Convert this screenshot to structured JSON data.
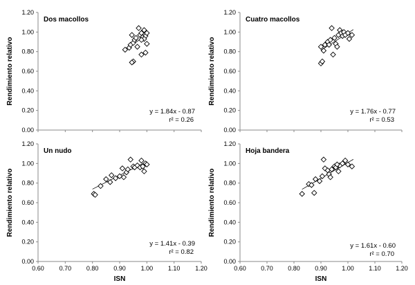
{
  "chart_data": [
    {
      "type": "scatter",
      "title": "Dos  macollos",
      "xlabel": "",
      "ylabel": "Rendimiento relativo",
      "xlim": [
        0.6,
        1.2
      ],
      "ylim": [
        0.0,
        1.2
      ],
      "xticks": [
        "0.60",
        "0.70",
        "0.80",
        "0.90",
        "1.00",
        "1.10",
        "1.20"
      ],
      "yticks": [
        "0.00",
        "0.20",
        "0.40",
        "0.60",
        "0.80",
        "1.00",
        "1.20"
      ],
      "show_xticks": false,
      "equation": "y = 1.84x - 0.87",
      "r2": "r² = 0.26",
      "trend": {
        "slope": 1.84,
        "intercept": -0.87,
        "x_range": [
          0.92,
          1.0
        ]
      },
      "points": [
        {
          "x": 0.92,
          "y": 0.82
        },
        {
          "x": 0.935,
          "y": 0.84
        },
        {
          "x": 0.94,
          "y": 0.87
        },
        {
          "x": 0.945,
          "y": 0.97
        },
        {
          "x": 0.95,
          "y": 0.89
        },
        {
          "x": 0.955,
          "y": 0.92
        },
        {
          "x": 0.96,
          "y": 0.94
        },
        {
          "x": 0.965,
          "y": 0.85
        },
        {
          "x": 0.97,
          "y": 1.04
        },
        {
          "x": 0.975,
          "y": 0.97
        },
        {
          "x": 0.98,
          "y": 0.99
        },
        {
          "x": 0.985,
          "y": 0.95
        },
        {
          "x": 0.99,
          "y": 1.02
        },
        {
          "x": 0.995,
          "y": 0.96
        },
        {
          "x": 1.0,
          "y": 0.99
        },
        {
          "x": 0.99,
          "y": 0.93
        },
        {
          "x": 0.95,
          "y": 0.7
        },
        {
          "x": 0.945,
          "y": 0.69
        },
        {
          "x": 0.98,
          "y": 0.77
        },
        {
          "x": 0.995,
          "y": 0.79
        },
        {
          "x": 1.0,
          "y": 0.88
        },
        {
          "x": 0.98,
          "y": 0.92
        }
      ]
    },
    {
      "type": "scatter",
      "title": "Cuatro macollos",
      "xlabel": "",
      "ylabel": "Rendimiento relativo",
      "xlim": [
        0.6,
        1.2
      ],
      "ylim": [
        0.0,
        1.2
      ],
      "xticks": [
        "0.60",
        "0.70",
        "0.80",
        "0.90",
        "1.00",
        "1.10",
        "1.20"
      ],
      "yticks": [
        "0.00",
        "0.20",
        "0.40",
        "0.60",
        "0.80",
        "1.00",
        "1.20"
      ],
      "show_xticks": false,
      "equation": "y = 1.76x - 0.77",
      "r2": "r² = 0.53",
      "trend": {
        "slope": 1.76,
        "intercept": -0.77,
        "x_range": [
          0.9,
          1.02
        ]
      },
      "points": [
        {
          "x": 0.9,
          "y": 0.68
        },
        {
          "x": 0.905,
          "y": 0.7
        },
        {
          "x": 0.9,
          "y": 0.85
        },
        {
          "x": 0.91,
          "y": 0.81
        },
        {
          "x": 0.915,
          "y": 0.87
        },
        {
          "x": 0.925,
          "y": 0.9
        },
        {
          "x": 0.935,
          "y": 0.92
        },
        {
          "x": 0.94,
          "y": 1.04
        },
        {
          "x": 0.95,
          "y": 0.94
        },
        {
          "x": 0.955,
          "y": 0.88
        },
        {
          "x": 0.96,
          "y": 0.85
        },
        {
          "x": 0.965,
          "y": 0.97
        },
        {
          "x": 0.97,
          "y": 1.02
        },
        {
          "x": 0.975,
          "y": 0.99
        },
        {
          "x": 0.98,
          "y": 0.96
        },
        {
          "x": 0.985,
          "y": 1.0
        },
        {
          "x": 0.99,
          "y": 0.97
        },
        {
          "x": 1.0,
          "y": 0.99
        },
        {
          "x": 1.005,
          "y": 0.93
        },
        {
          "x": 1.015,
          "y": 0.97
        },
        {
          "x": 0.945,
          "y": 0.77
        },
        {
          "x": 0.93,
          "y": 0.87
        }
      ]
    },
    {
      "type": "scatter",
      "title": "Un nudo",
      "xlabel": "ISN",
      "ylabel": "Rendimiento relativo",
      "xlim": [
        0.6,
        1.2
      ],
      "ylim": [
        0.0,
        1.2
      ],
      "xticks": [
        "0.60",
        "0.70",
        "0.80",
        "0.90",
        "1.00",
        "1.10",
        "1.20"
      ],
      "yticks": [
        "0.00",
        "0.20",
        "0.40",
        "0.60",
        "0.80",
        "1.00",
        "1.20"
      ],
      "show_xticks": true,
      "equation": "y = 1.41x - 0.39",
      "r2": "r² = 0.82",
      "trend": {
        "slope": 1.41,
        "intercept": -0.39,
        "x_range": [
          0.8,
          1.0
        ]
      },
      "points": [
        {
          "x": 0.805,
          "y": 0.69
        },
        {
          "x": 0.81,
          "y": 0.68
        },
        {
          "x": 0.83,
          "y": 0.77
        },
        {
          "x": 0.85,
          "y": 0.84
        },
        {
          "x": 0.865,
          "y": 0.81
        },
        {
          "x": 0.87,
          "y": 0.88
        },
        {
          "x": 0.885,
          "y": 0.85
        },
        {
          "x": 0.9,
          "y": 0.87
        },
        {
          "x": 0.91,
          "y": 0.95
        },
        {
          "x": 0.915,
          "y": 0.86
        },
        {
          "x": 0.925,
          "y": 0.91
        },
        {
          "x": 0.93,
          "y": 0.94
        },
        {
          "x": 0.94,
          "y": 1.04
        },
        {
          "x": 0.95,
          "y": 0.97
        },
        {
          "x": 0.955,
          "y": 0.96
        },
        {
          "x": 0.965,
          "y": 0.98
        },
        {
          "x": 0.975,
          "y": 0.96
        },
        {
          "x": 0.98,
          "y": 1.03
        },
        {
          "x": 0.99,
          "y": 0.92
        },
        {
          "x": 0.995,
          "y": 1.0
        },
        {
          "x": 1.0,
          "y": 0.99
        },
        {
          "x": 0.985,
          "y": 0.97
        }
      ]
    },
    {
      "type": "scatter",
      "title": "Hoja bandera",
      "xlabel": "ISN",
      "ylabel": "Rendimiento relativo",
      "xlim": [
        0.6,
        1.2
      ],
      "ylim": [
        0.0,
        1.2
      ],
      "xticks": [
        "0.60",
        "0.70",
        "0.80",
        "0.90",
        "1.00",
        "1.10",
        "1.20"
      ],
      "yticks": [
        "0.00",
        "0.20",
        "0.40",
        "0.60",
        "0.80",
        "1.00",
        "1.20"
      ],
      "show_xticks": true,
      "equation": "y = 1.61x - 0.60",
      "r2": "r² = 0.70",
      "trend": {
        "slope": 1.61,
        "intercept": -0.6,
        "x_range": [
          0.83,
          1.02
        ]
      },
      "points": [
        {
          "x": 0.83,
          "y": 0.69
        },
        {
          "x": 0.855,
          "y": 0.79
        },
        {
          "x": 0.865,
          "y": 0.78
        },
        {
          "x": 0.875,
          "y": 0.7
        },
        {
          "x": 0.88,
          "y": 0.84
        },
        {
          "x": 0.895,
          "y": 0.82
        },
        {
          "x": 0.905,
          "y": 0.87
        },
        {
          "x": 0.91,
          "y": 1.04
        },
        {
          "x": 0.915,
          "y": 0.95
        },
        {
          "x": 0.925,
          "y": 0.93
        },
        {
          "x": 0.93,
          "y": 0.89
        },
        {
          "x": 0.94,
          "y": 0.94
        },
        {
          "x": 0.95,
          "y": 0.97
        },
        {
          "x": 0.955,
          "y": 0.96
        },
        {
          "x": 0.965,
          "y": 0.92
        },
        {
          "x": 0.97,
          "y": 0.98
        },
        {
          "x": 0.98,
          "y": 1.0
        },
        {
          "x": 0.99,
          "y": 1.03
        },
        {
          "x": 1.0,
          "y": 0.99
        },
        {
          "x": 1.015,
          "y": 0.97
        },
        {
          "x": 0.935,
          "y": 0.86
        },
        {
          "x": 0.96,
          "y": 0.99
        }
      ]
    }
  ]
}
